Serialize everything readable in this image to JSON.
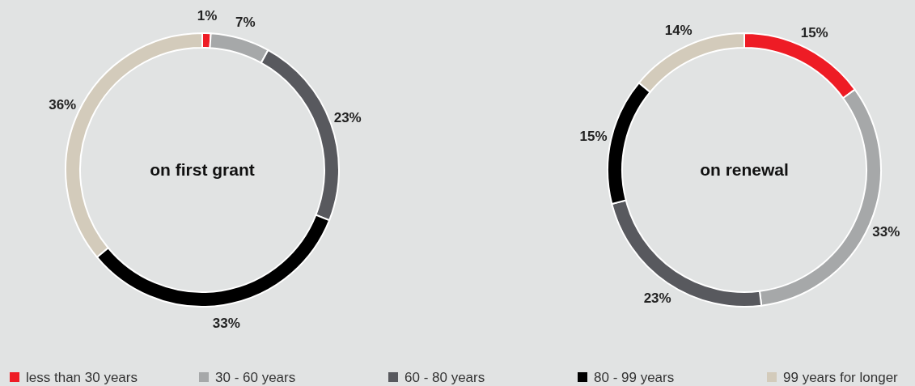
{
  "chart_data": [
    {
      "type": "donut",
      "title": "on first grant",
      "categories": [
        "less than 30 years",
        "30 - 60 years",
        "60 - 80 years",
        "80 - 99 years",
        "99 years for longer"
      ],
      "values": [
        1,
        7,
        23,
        33,
        36
      ],
      "colors": [
        "#ee1c25",
        "#a6a8a9",
        "#58595e",
        "#000000",
        "#d3cbbb"
      ],
      "value_labels": [
        "1%",
        "7%",
        "23%",
        "33%",
        "36%"
      ],
      "legend": "bottom"
    },
    {
      "type": "donut",
      "title": "on renewal",
      "categories": [
        null,
        null,
        null,
        null,
        null
      ],
      "values": [
        15,
        33,
        23,
        15,
        14
      ],
      "colors": [
        "#ee1c25",
        "#a6a8a9",
        "#58595e",
        "#000000",
        "#d3cbbb"
      ],
      "value_labels": [
        "15%",
        "33%",
        "23%",
        "15%",
        "14%"
      ]
    }
  ]
}
